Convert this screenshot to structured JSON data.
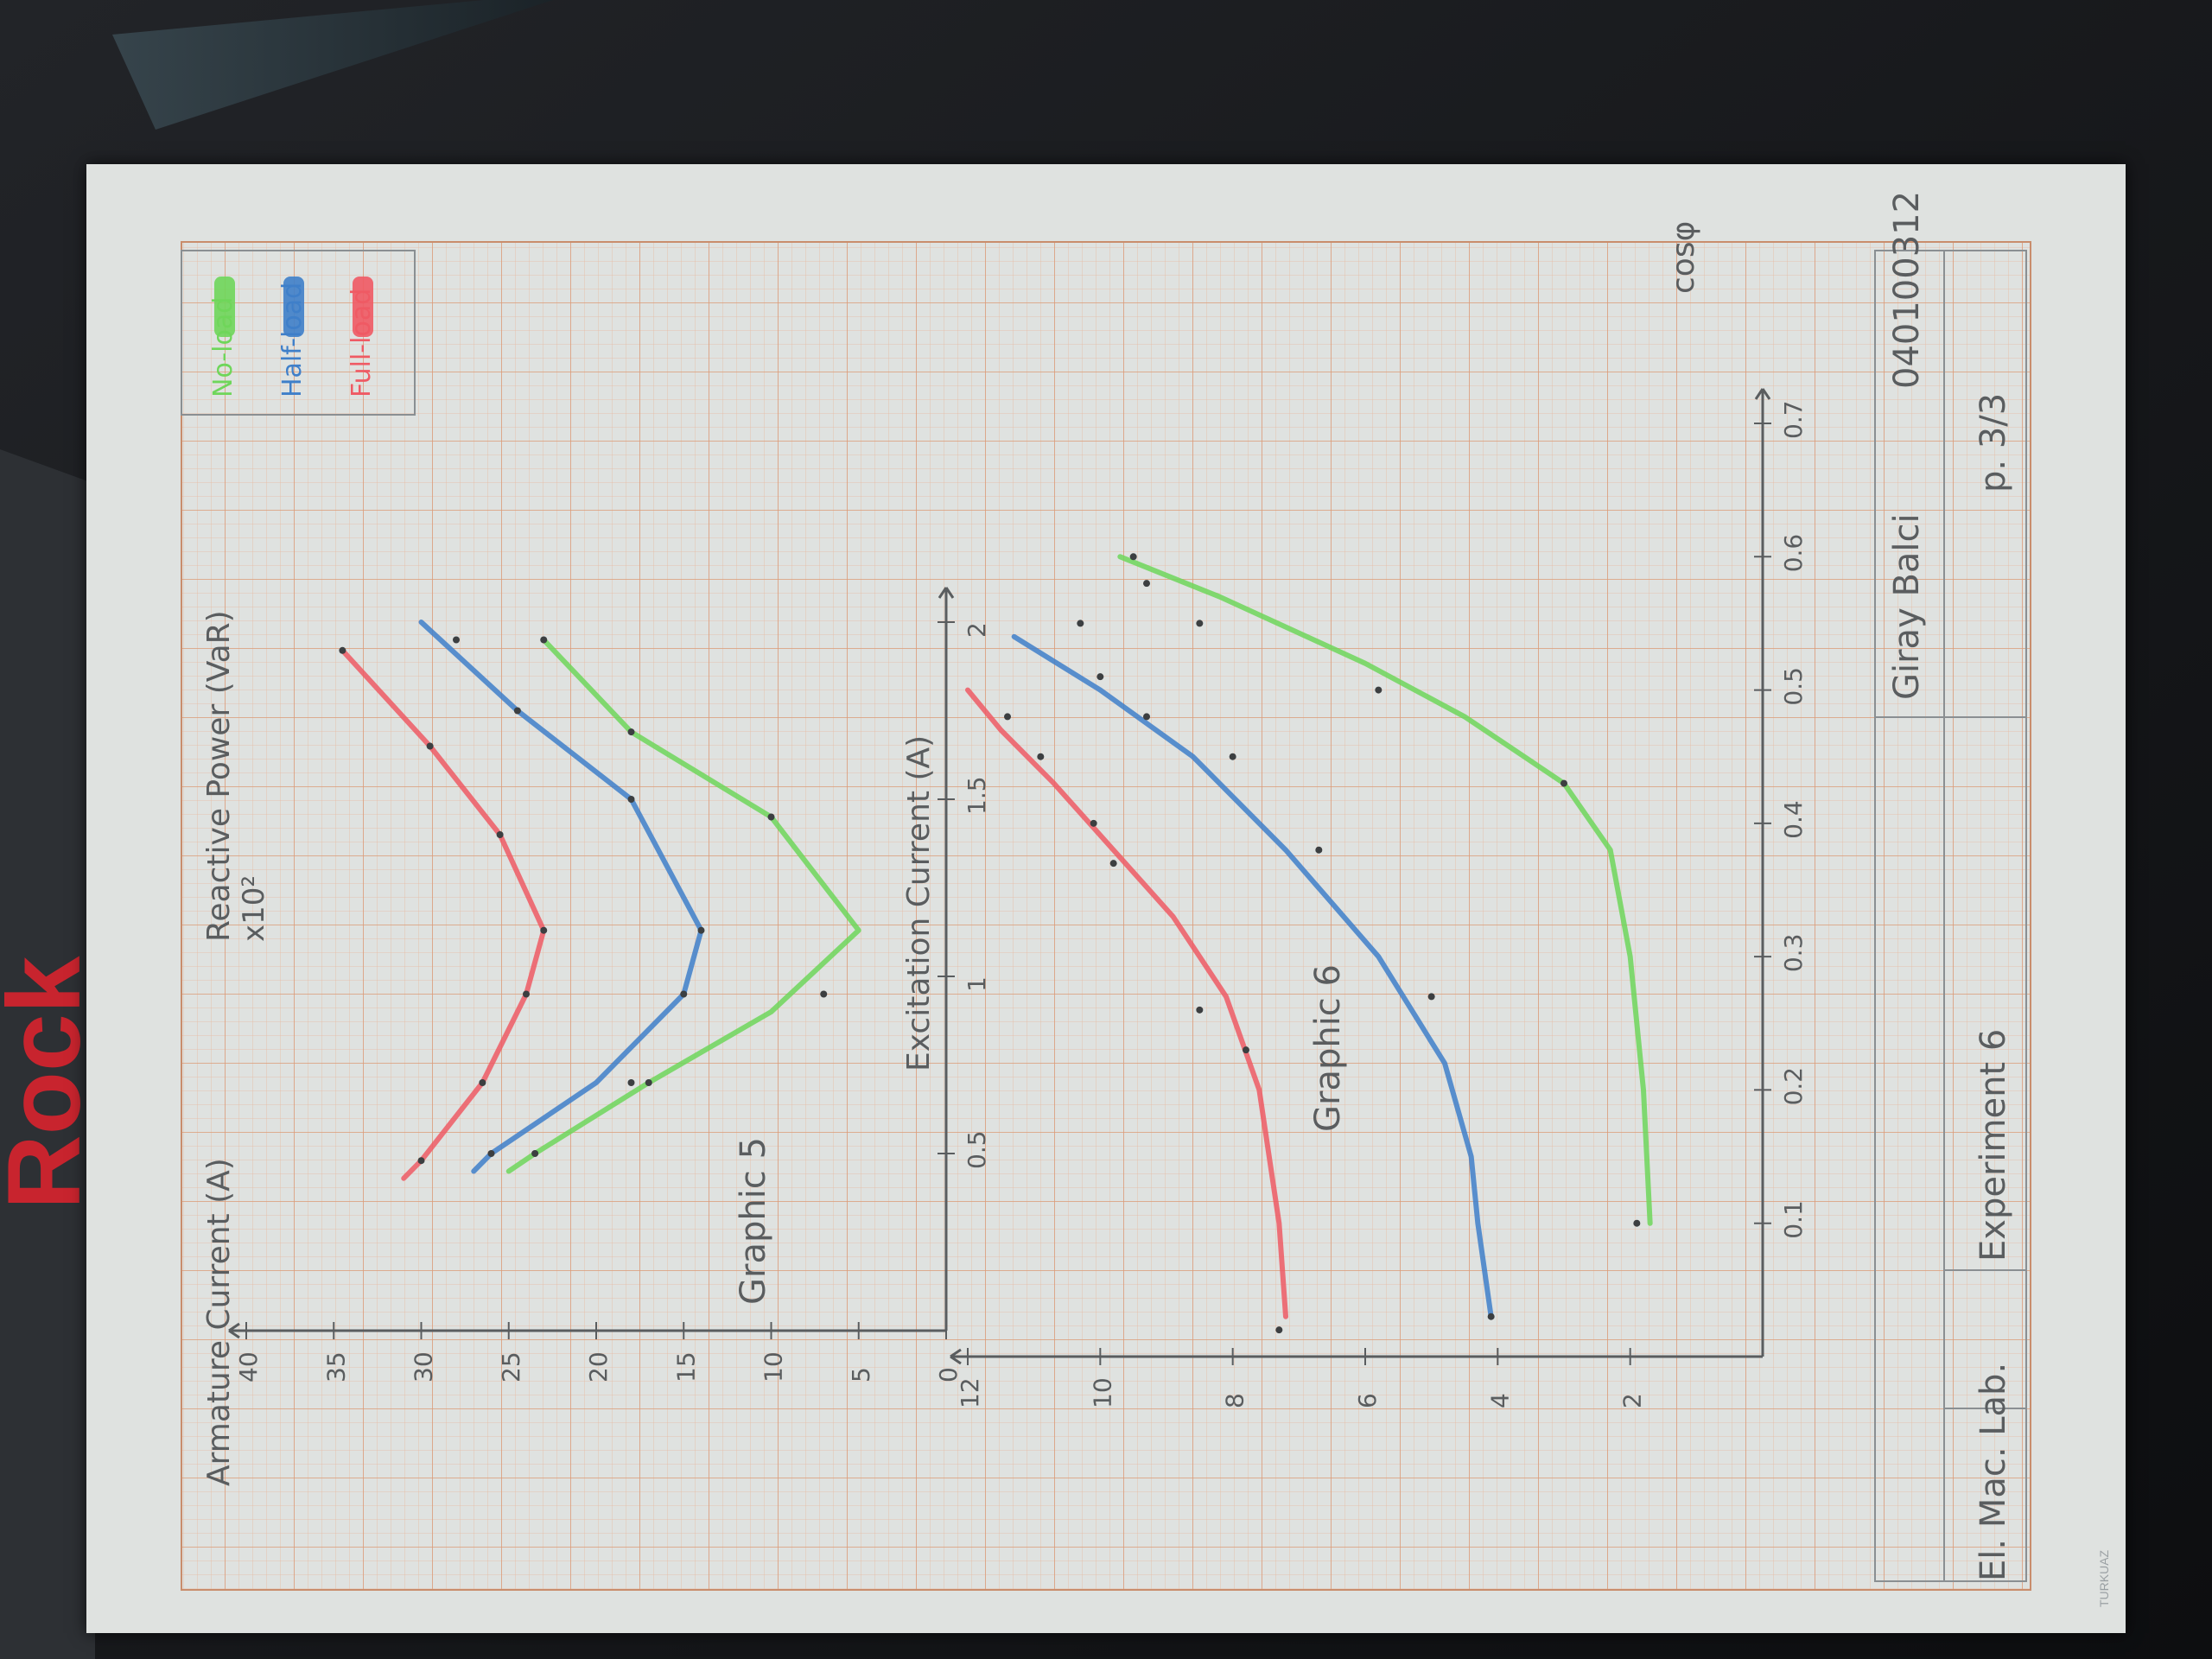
{
  "sheet": {
    "name": "Giray Balci",
    "student_id": "040100312",
    "course": "El. Mac. Lab.",
    "experiment": "Experiment 6",
    "page": "p. 3/3",
    "paper_brand": "TURKUAZ"
  },
  "legend": {
    "items": [
      {
        "label": "No-load",
        "color": "#6fd65a"
      },
      {
        "label": "Half-load",
        "color": "#3f7fc9"
      },
      {
        "label": "Full-load",
        "color": "#ef5a64"
      }
    ]
  },
  "background": {
    "logo_text": "Rock",
    "logo_color": "#c8242e"
  },
  "chart_data": [
    {
      "type": "line",
      "title": "Graphic 5",
      "xlabel": "Excitation Current (A)",
      "ylabel": "Reactive Power (VaR)",
      "y_multiplier": "x10²",
      "xlim": [
        0,
        2
      ],
      "ylim": [
        0,
        40
      ],
      "x_ticks": [
        0.5,
        1,
        1.5,
        2
      ],
      "x_tick_labels": [
        "0.5",
        "1",
        "1.5",
        "2"
      ],
      "y_ticks": [
        0,
        5,
        10,
        15,
        20,
        25,
        30,
        35,
        40
      ],
      "y_tick_labels": [
        "0",
        "5",
        "10",
        "15",
        "20",
        "25",
        "30",
        "35",
        "40"
      ],
      "series": [
        {
          "name": "No-load",
          "color": "#6fd65a",
          "x": [
            0.45,
            0.5,
            0.7,
            0.9,
            1.13,
            1.45,
            1.69,
            1.95
          ],
          "y": [
            25,
            23.5,
            17,
            10,
            5,
            10,
            18,
            23
          ],
          "points": [
            [
              0.5,
              23.5
            ],
            [
              0.7,
              17
            ],
            [
              0.95,
              7
            ],
            [
              1.45,
              10
            ],
            [
              1.69,
              18
            ],
            [
              1.95,
              23
            ]
          ]
        },
        {
          "name": "Half-load",
          "color": "#3f7fc9",
          "x": [
            0.45,
            0.5,
            0.7,
            0.95,
            1.13,
            1.5,
            1.75,
            2.0
          ],
          "y": [
            27,
            26,
            20,
            15,
            14,
            18,
            24.5,
            30
          ],
          "points": [
            [
              0.5,
              26
            ],
            [
              0.7,
              18
            ],
            [
              0.95,
              15
            ],
            [
              1.13,
              14
            ],
            [
              1.5,
              18
            ],
            [
              1.75,
              24.5
            ],
            [
              1.95,
              28
            ]
          ]
        },
        {
          "name": "Full-load",
          "color": "#ef5a64",
          "x": [
            0.43,
            0.48,
            0.7,
            0.95,
            1.13,
            1.4,
            1.65,
            1.92
          ],
          "y": [
            31,
            30,
            26.5,
            24,
            23,
            25.5,
            29.5,
            34.5
          ],
          "points": [
            [
              0.48,
              30
            ],
            [
              0.7,
              26.5
            ],
            [
              0.95,
              24
            ],
            [
              1.13,
              23
            ],
            [
              1.4,
              25.5
            ],
            [
              1.65,
              29.5
            ],
            [
              1.92,
              34.5
            ]
          ]
        }
      ]
    },
    {
      "type": "line",
      "title": "Graphic 6",
      "xlabel": "cosφ",
      "ylabel": "Armature Current (A)",
      "xlim": [
        0,
        0.7
      ],
      "ylim": [
        0,
        12
      ],
      "x_ticks": [
        0.1,
        0.2,
        0.3,
        0.4,
        0.5,
        0.6,
        0.7
      ],
      "x_tick_labels": [
        "0.1",
        "0.2",
        "0.3",
        "0.4",
        "0.5",
        "0.6",
        "0.7"
      ],
      "y_ticks": [
        2,
        4,
        6,
        8,
        10,
        12
      ],
      "y_tick_labels": [
        "2",
        "4",
        "6",
        "8",
        "10",
        "12"
      ],
      "series": [
        {
          "name": "No-load",
          "color": "#6fd65a",
          "x": [
            0.1,
            0.2,
            0.3,
            0.38,
            0.43,
            0.48,
            0.52,
            0.57,
            0.6
          ],
          "y": [
            1.7,
            1.8,
            2.0,
            2.3,
            3.0,
            4.5,
            6.0,
            8.2,
            9.7
          ],
          "points": [
            [
              0.1,
              1.9
            ],
            [
              0.43,
              3.0
            ],
            [
              0.5,
              5.8
            ],
            [
              0.55,
              8.5
            ],
            [
              0.58,
              9.3
            ],
            [
              0.6,
              9.5
            ]
          ]
        },
        {
          "name": "Half-load",
          "color": "#3f7fc9",
          "x": [
            0.03,
            0.1,
            0.15,
            0.22,
            0.3,
            0.38,
            0.45,
            0.5,
            0.54
          ],
          "y": [
            4.1,
            4.3,
            4.4,
            4.8,
            5.8,
            7.2,
            8.6,
            10.0,
            11.3
          ],
          "points": [
            [
              0.03,
              4.1
            ],
            [
              0.27,
              5.0
            ],
            [
              0.38,
              6.7
            ],
            [
              0.45,
              8.0
            ],
            [
              0.48,
              9.3
            ],
            [
              0.51,
              10.0
            ],
            [
              0.55,
              10.3
            ]
          ]
        },
        {
          "name": "Full-load",
          "color": "#ef5a64",
          "x": [
            0.03,
            0.1,
            0.2,
            0.27,
            0.33,
            0.38,
            0.43,
            0.47,
            0.5
          ],
          "y": [
            7.2,
            7.3,
            7.6,
            8.1,
            8.9,
            9.8,
            10.7,
            11.5,
            12.0
          ],
          "points": [
            [
              0.02,
              7.3
            ],
            [
              0.23,
              7.8
            ],
            [
              0.26,
              8.5
            ],
            [
              0.37,
              9.8
            ],
            [
              0.4,
              10.1
            ],
            [
              0.45,
              10.9
            ],
            [
              0.48,
              11.4
            ]
          ]
        }
      ]
    }
  ]
}
